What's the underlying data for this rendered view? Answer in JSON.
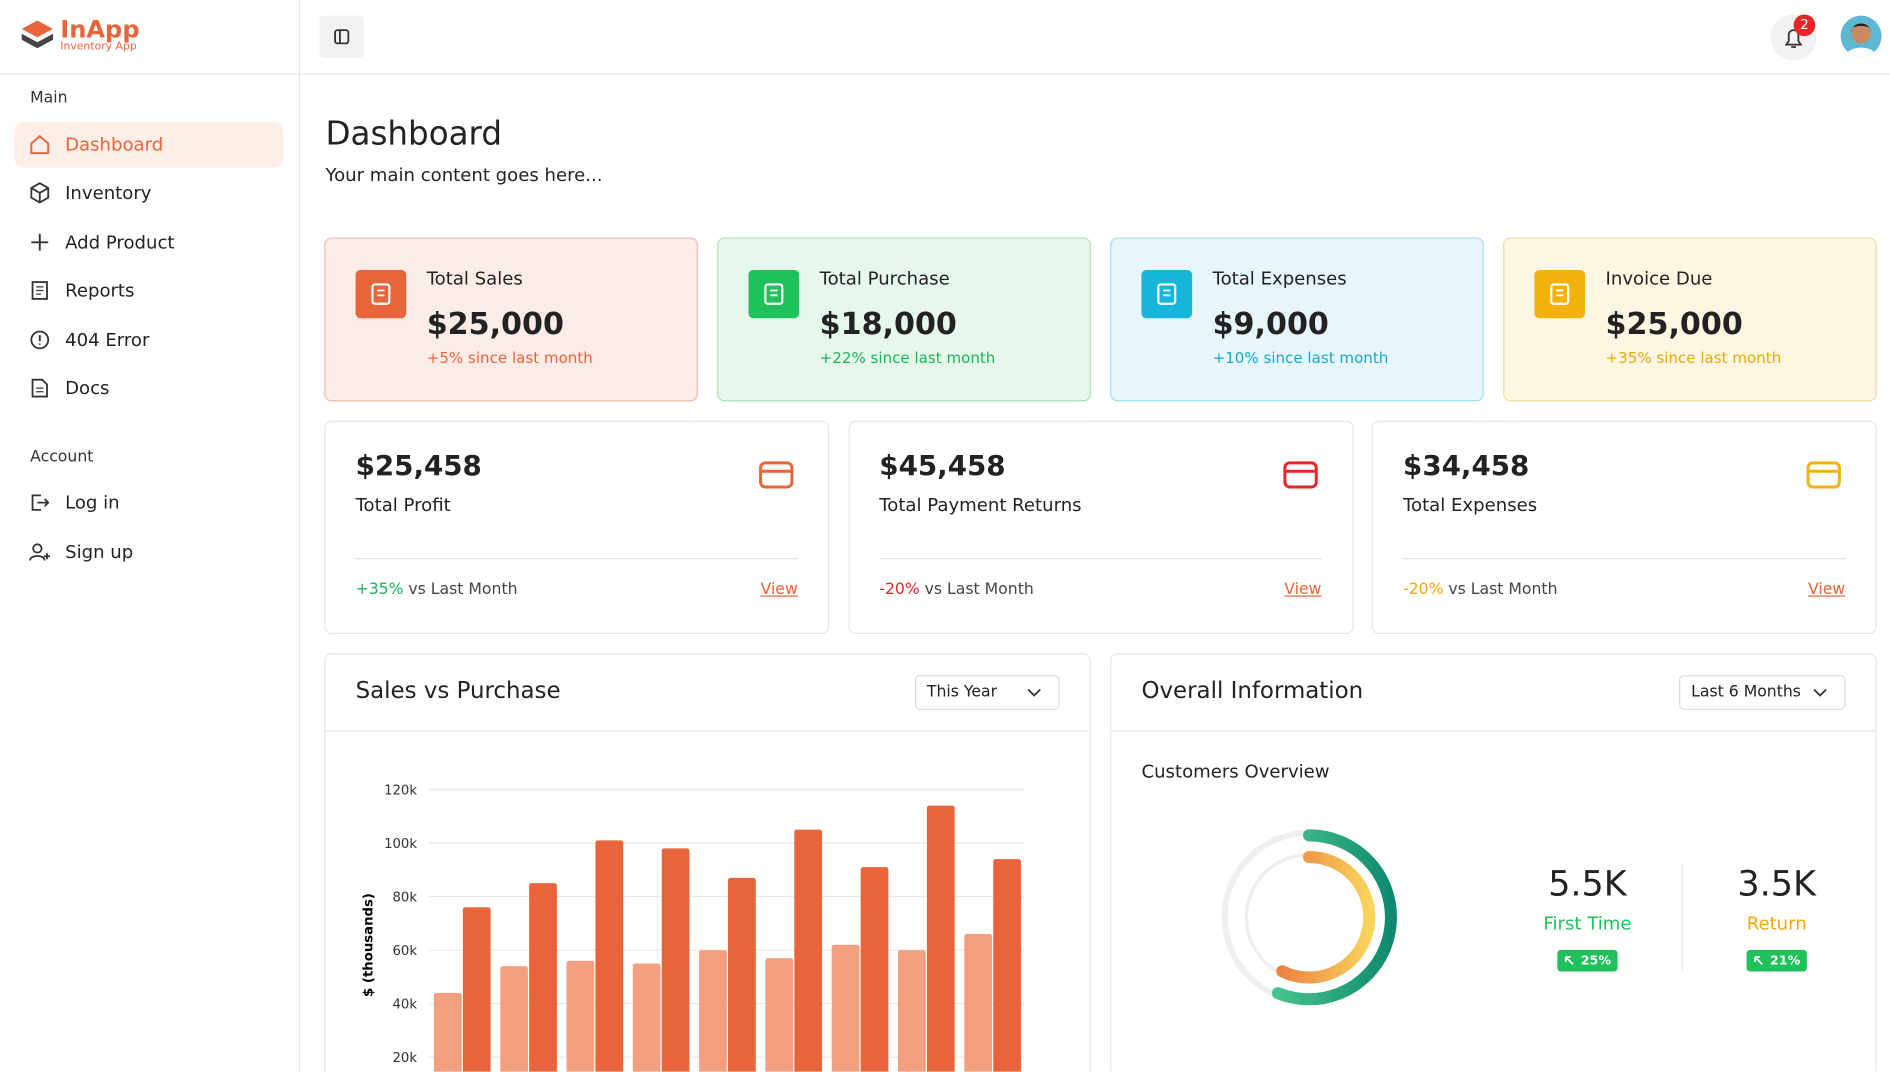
{
  "brand": {
    "name": "InApp",
    "tagline": "Inventory App"
  },
  "sidebar": {
    "sections": [
      {
        "title": "Main",
        "items": [
          "Dashboard",
          "Inventory",
          "Add Product",
          "Reports",
          "404 Error",
          "Docs"
        ]
      },
      {
        "title": "Account",
        "items": [
          "Log in",
          "Sign up"
        ]
      }
    ]
  },
  "header": {
    "notifications": 2
  },
  "page": {
    "title": "Dashboard",
    "subtitle": "Your main content goes here..."
  },
  "stat_cards": [
    {
      "label": "Total Sales",
      "value": "$25,000",
      "change": "+5% since last month"
    },
    {
      "label": "Total Purchase",
      "value": "$18,000",
      "change": "+22% since last month"
    },
    {
      "label": "Total Expenses",
      "value": "$9,000",
      "change": "+10% since last month"
    },
    {
      "label": "Invoice Due",
      "value": "$25,000",
      "change": "+35% since last month"
    }
  ],
  "metric_cards": [
    {
      "value": "$25,458",
      "label": "Total Profit",
      "change": "+35%",
      "change_text": "vs Last Month",
      "link": "View"
    },
    {
      "value": "$45,458",
      "label": "Total Payment Returns",
      "change": "-20%",
      "change_text": "vs Last Month",
      "link": "View"
    },
    {
      "value": "$34,458",
      "label": "Total Expenses",
      "change": "-20%",
      "change_text": "vs Last Month",
      "link": "View"
    }
  ],
  "sales_panel": {
    "title": "Sales vs Purchase",
    "filter": "This Year",
    "chart_data": {
      "type": "bar",
      "ylabel": "$ (thousands)",
      "series": [
        {
          "color": "#f4a080",
          "values": [
            44,
            54,
            56,
            55,
            60,
            57,
            62,
            60,
            66
          ]
        },
        {
          "color": "#e8643a",
          "values": [
            76,
            85,
            101,
            98,
            87,
            105,
            91,
            114,
            94
          ]
        }
      ],
      "ylim": [
        0,
        120
      ],
      "yticks": [
        {
          "value": 20,
          "label": "20k"
        },
        {
          "value": 40,
          "label": "40k"
        },
        {
          "value": 60,
          "label": "60k"
        },
        {
          "value": 80,
          "label": "80k"
        },
        {
          "value": 100,
          "label": "100k"
        },
        {
          "value": 120,
          "label": "120k"
        }
      ],
      "grid": true
    }
  },
  "overview_panel": {
    "title": "Overall Information",
    "filter": "Last 6 Months",
    "subtitle": "Customers Overview",
    "stats": [
      {
        "value": "5.5K",
        "label": "First Time",
        "badge": "25%"
      },
      {
        "value": "3.5K",
        "label": "Return",
        "badge": "21%"
      }
    ]
  }
}
